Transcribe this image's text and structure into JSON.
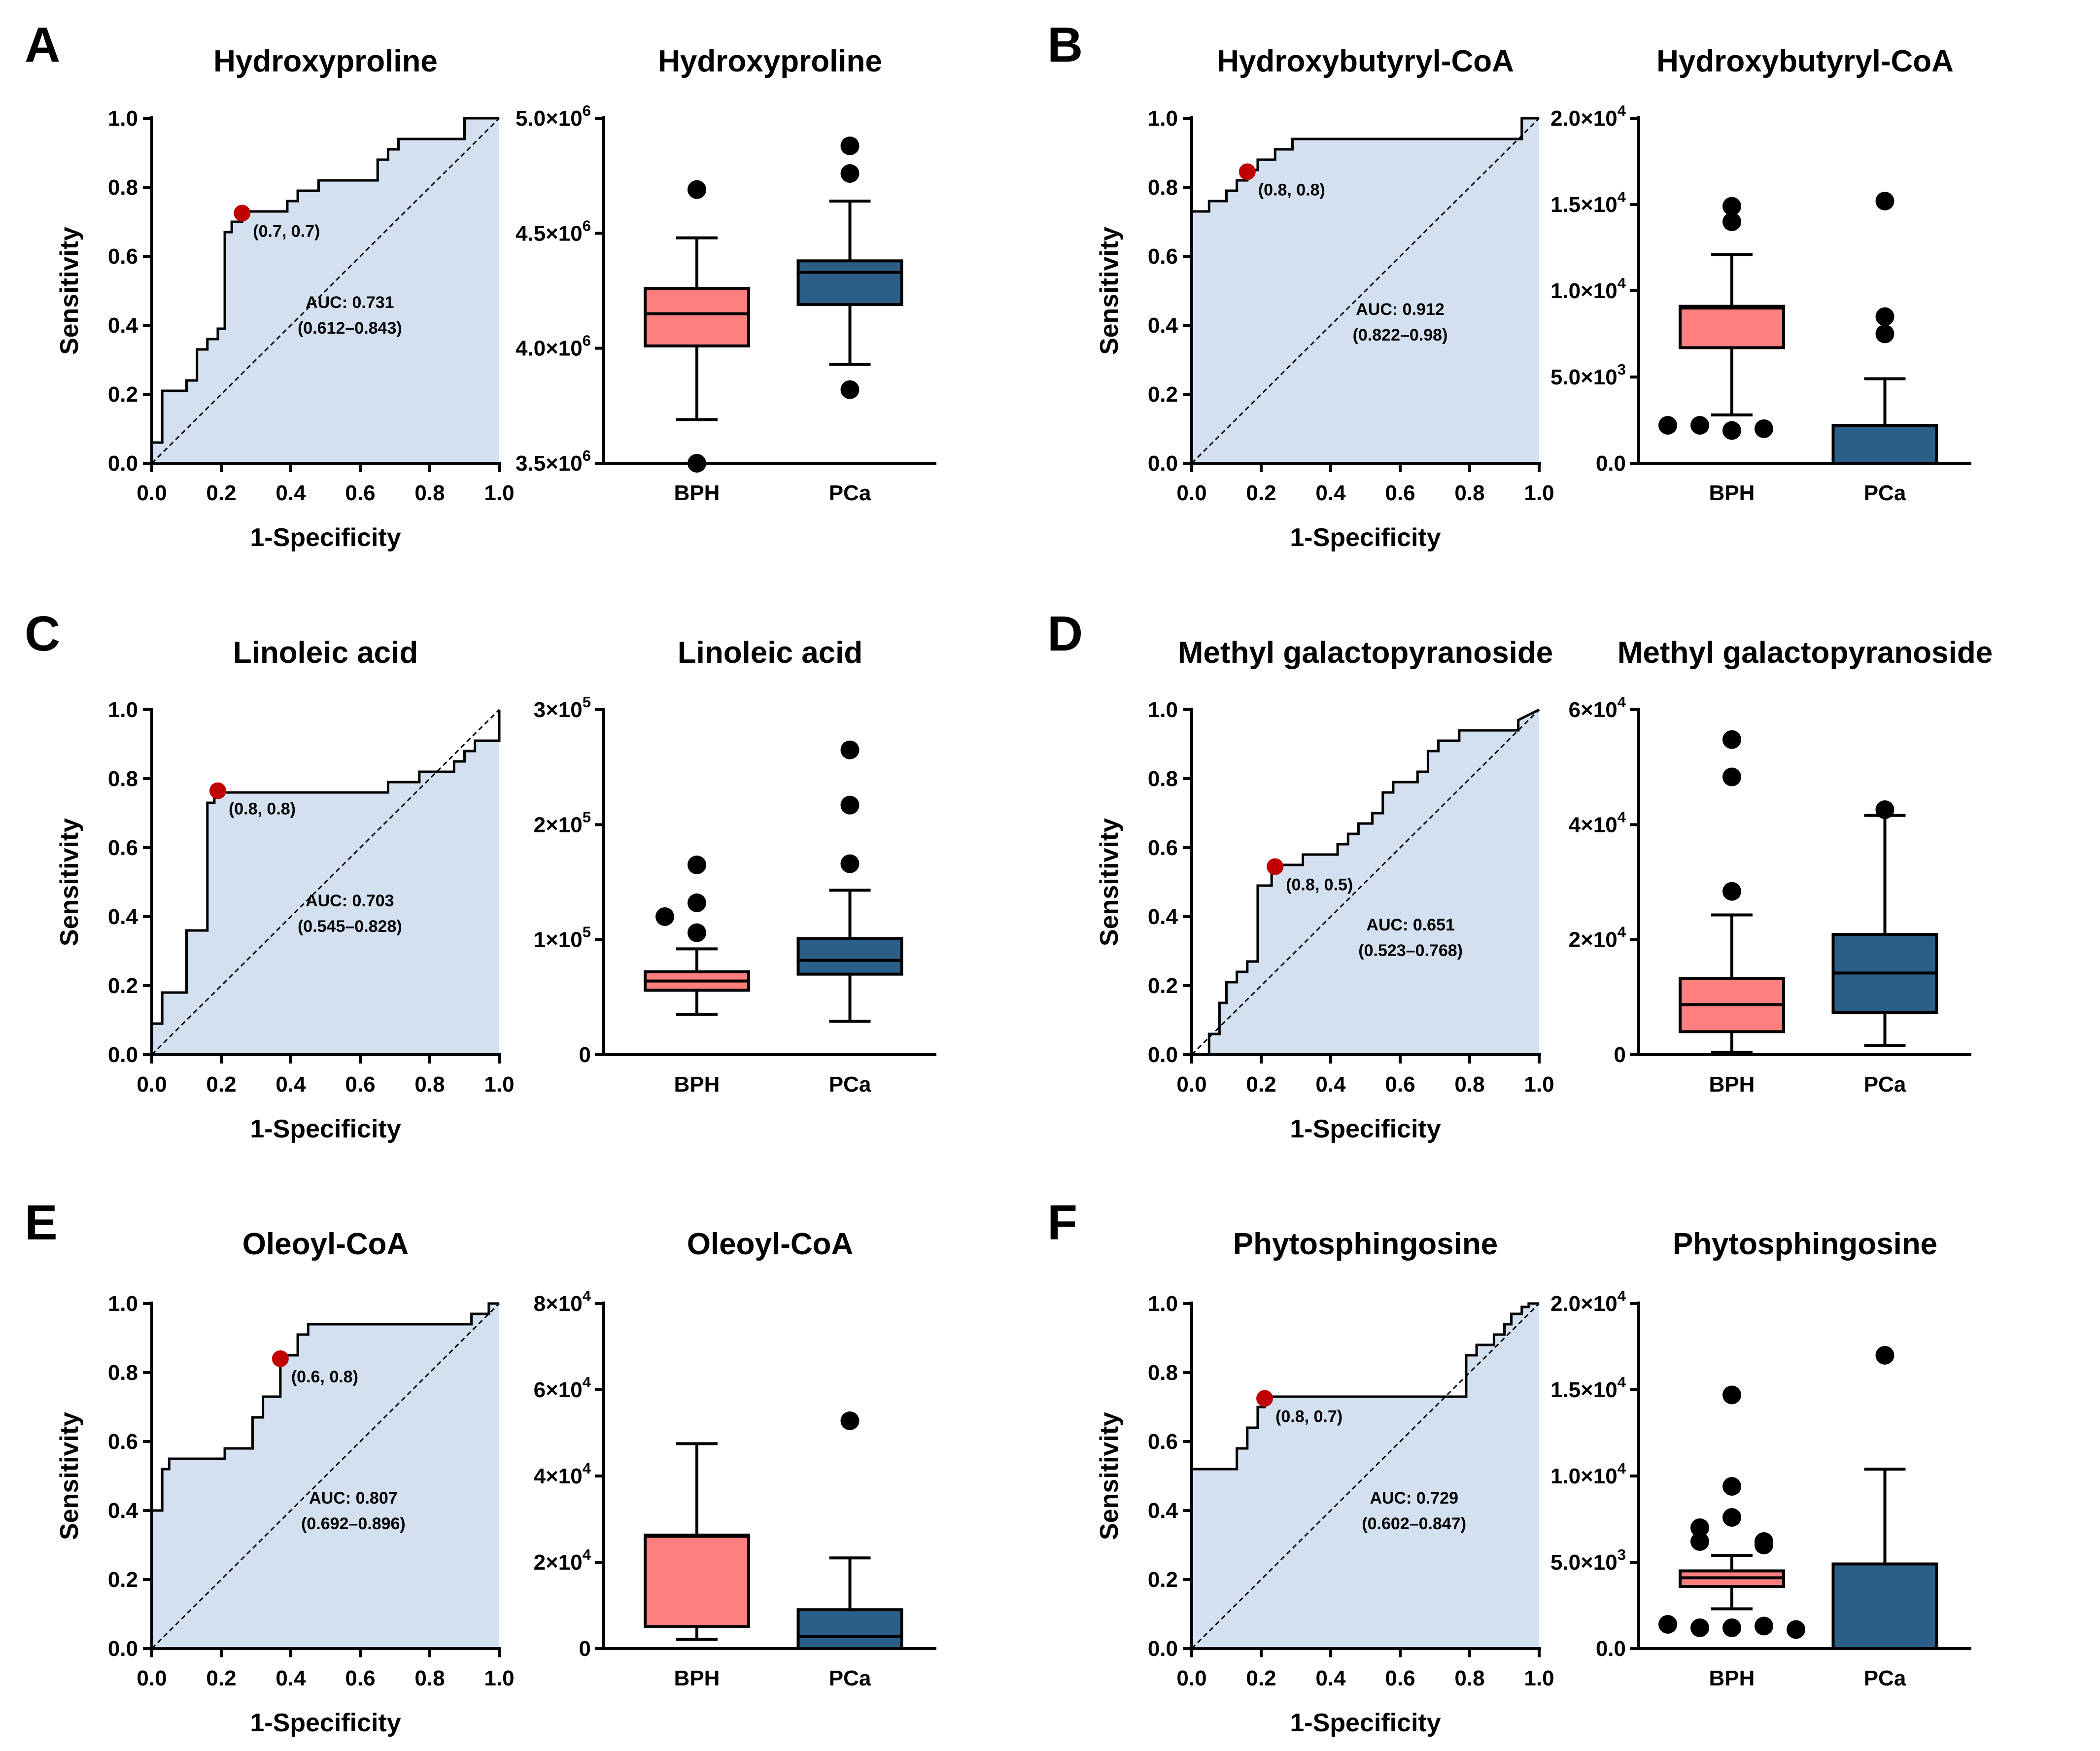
{
  "figure": {
    "colors": {
      "roc_fill": "#d3e0ef",
      "bph": "#ff7f7f",
      "pca": "#2b5f88",
      "cutoff_point": "#c00000",
      "ink": "#000000"
    }
  },
  "chart_data": [
    {
      "type": "line",
      "kind": "roc",
      "panel": "A",
      "title": "Hydroxyproline",
      "xlabel": "1-Specificity",
      "ylabel": "Sensitivity",
      "xlim": [
        0,
        1
      ],
      "ylim": [
        0,
        1
      ],
      "xticks": [
        "0.0",
        "0.2",
        "0.4",
        "0.6",
        "0.8",
        "1.0"
      ],
      "yticks": [
        "0.0",
        "0.2",
        "0.4",
        "0.6",
        "0.8",
        "1.0"
      ],
      "x": [
        0,
        0,
        0.03,
        0.03,
        0.1,
        0.1,
        0.13,
        0.13,
        0.16,
        0.16,
        0.19,
        0.19,
        0.21,
        0.21,
        0.23,
        0.23,
        0.26,
        0.26,
        0.39,
        0.39,
        0.42,
        0.42,
        0.48,
        0.48,
        0.65,
        0.65,
        0.68,
        0.68,
        0.71,
        0.71,
        0.9,
        0.9,
        1.0
      ],
      "y": [
        0,
        0.06,
        0.06,
        0.21,
        0.21,
        0.24,
        0.24,
        0.33,
        0.33,
        0.36,
        0.36,
        0.39,
        0.39,
        0.67,
        0.67,
        0.7,
        0.7,
        0.73,
        0.73,
        0.76,
        0.76,
        0.79,
        0.79,
        0.82,
        0.82,
        0.88,
        0.88,
        0.91,
        0.91,
        0.94,
        0.94,
        1.0,
        1.0
      ],
      "cutoff": [
        0.26,
        0.725
      ],
      "cutoff_label": "(0.7, 0.7)",
      "auc_label": "AUC: 0.731",
      "ci_label": "(0.612–0.843)",
      "ann_pos": [
        0.57,
        0.45
      ]
    },
    {
      "type": "box",
      "panel": "A",
      "title": "Hydroxyproline",
      "categories": [
        "BPH",
        "PCa"
      ],
      "ylim": [
        3500000,
        5000000
      ],
      "yticks": [
        {
          "v": 3500000,
          "m": "3.5",
          "e": "6"
        },
        {
          "v": 4000000,
          "m": "4.0",
          "e": "6"
        },
        {
          "v": 4500000,
          "m": "4.5",
          "e": "6"
        },
        {
          "v": 5000000,
          "m": "5.0",
          "e": "6"
        }
      ],
      "boxes": [
        {
          "name": "BPH",
          "whisker_low": 3690000,
          "q1": 4010000,
          "median": 4150000,
          "q3": 4260000,
          "whisker_high": 4480000,
          "outliers": [
            4690000,
            3500000
          ]
        },
        {
          "name": "PCa",
          "whisker_low": 3930000,
          "q1": 4190000,
          "median": 4330000,
          "q3": 4380000,
          "whisker_high": 4640000,
          "outliers": [
            4880000,
            4760000,
            3820000
          ]
        }
      ]
    },
    {
      "type": "line",
      "kind": "roc",
      "panel": "B",
      "title": "Hydroxybutyryl-CoA",
      "xlabel": "1-Specificity",
      "ylabel": "Sensitivity",
      "xlim": [
        0,
        1
      ],
      "ylim": [
        0,
        1
      ],
      "xticks": [
        "0.0",
        "0.2",
        "0.4",
        "0.6",
        "0.8",
        "1.0"
      ],
      "yticks": [
        "0.0",
        "0.2",
        "0.4",
        "0.6",
        "0.8",
        "1.0"
      ],
      "x": [
        0,
        0,
        0.05,
        0.05,
        0.1,
        0.1,
        0.13,
        0.13,
        0.16,
        0.16,
        0.19,
        0.19,
        0.24,
        0.24,
        0.29,
        0.29,
        0.95,
        0.95,
        1.0
      ],
      "y": [
        0,
        0.73,
        0.73,
        0.76,
        0.76,
        0.79,
        0.79,
        0.82,
        0.82,
        0.85,
        0.85,
        0.88,
        0.88,
        0.91,
        0.91,
        0.94,
        0.94,
        1.0,
        1.0
      ],
      "cutoff": [
        0.16,
        0.845
      ],
      "cutoff_label": "(0.8, 0.8)",
      "auc_label": "AUC: 0.912",
      "ci_label": "(0.822–0.98)",
      "ann_pos": [
        0.6,
        0.43
      ]
    },
    {
      "type": "box",
      "panel": "B",
      "title": "Hydroxybutyryl-CoA",
      "categories": [
        "BPH",
        "PCa"
      ],
      "ylim": [
        0,
        20000
      ],
      "yticks": [
        {
          "v": 0,
          "t": "0.0"
        },
        {
          "v": 5000,
          "m": "5.0",
          "e": "3"
        },
        {
          "v": 10000,
          "m": "1.0",
          "e": "4"
        },
        {
          "v": 15000,
          "m": "1.5",
          "e": "4"
        },
        {
          "v": 20000,
          "m": "2.0",
          "e": "4"
        }
      ],
      "boxes": [
        {
          "name": "BPH",
          "whisker_low": 2800,
          "q1": 6700,
          "median": 9000,
          "q3": 9100,
          "whisker_high": 12100,
          "outliers": [
            14900,
            14000,
            1900,
            2200,
            2000,
            2200
          ]
        },
        {
          "name": "PCa",
          "whisker_low": 0,
          "q1": 0,
          "median": 0,
          "q3": 2200,
          "whisker_high": 4900,
          "outliers": [
            15200,
            8500,
            7500
          ]
        }
      ]
    },
    {
      "type": "line",
      "kind": "roc",
      "panel": "C",
      "title": "Linoleic acid",
      "xlabel": "1-Specificity",
      "ylabel": "Sensitivity",
      "xlim": [
        0,
        1
      ],
      "ylim": [
        0,
        1
      ],
      "xticks": [
        "0.0",
        "0.2",
        "0.4",
        "0.6",
        "0.8",
        "1.0"
      ],
      "yticks": [
        "0.0",
        "0.2",
        "0.4",
        "0.6",
        "0.8",
        "1.0"
      ],
      "x": [
        0,
        0,
        0.03,
        0.03,
        0.1,
        0.1,
        0.16,
        0.16,
        0.18,
        0.18,
        0.68,
        0.68,
        0.77,
        0.77,
        0.87,
        0.87,
        0.9,
        0.9,
        0.93,
        0.93,
        1.0,
        1.0
      ],
      "y": [
        0,
        0.09,
        0.09,
        0.18,
        0.18,
        0.36,
        0.36,
        0.73,
        0.73,
        0.76,
        0.76,
        0.79,
        0.79,
        0.82,
        0.82,
        0.85,
        0.85,
        0.88,
        0.88,
        0.91,
        0.91,
        1.0
      ],
      "cutoff": [
        0.19,
        0.765
      ],
      "cutoff_label": "(0.8, 0.8)",
      "auc_label": "AUC: 0.703",
      "ci_label": "(0.545–0.828)",
      "ann_pos": [
        0.57,
        0.43
      ]
    },
    {
      "type": "box",
      "panel": "C",
      "title": "Linoleic acid",
      "categories": [
        "BPH",
        "PCa"
      ],
      "ylim": [
        0,
        300000
      ],
      "yticks": [
        {
          "v": 0,
          "t": "0"
        },
        {
          "v": 100000,
          "m": "1",
          "e": "5"
        },
        {
          "v": 200000,
          "m": "2",
          "e": "5"
        },
        {
          "v": 300000,
          "m": "3",
          "e": "5"
        }
      ],
      "boxes": [
        {
          "name": "BPH",
          "whisker_low": 35000,
          "q1": 56000,
          "median": 64000,
          "q3": 72000,
          "whisker_high": 92000,
          "outliers": [
            165000,
            132000,
            120000,
            106000
          ]
        },
        {
          "name": "PCa",
          "whisker_low": 29000,
          "q1": 70000,
          "median": 82000,
          "q3": 101000,
          "whisker_high": 143000,
          "outliers": [
            265000,
            217000,
            166000
          ]
        }
      ]
    },
    {
      "type": "line",
      "kind": "roc",
      "panel": "D",
      "title": "Methyl galactopyranoside",
      "xlabel": "1-Specificity",
      "ylabel": "Sensitivity",
      "xlim": [
        0,
        1
      ],
      "ylim": [
        0,
        1
      ],
      "xticks": [
        "0.0",
        "0.2",
        "0.4",
        "0.6",
        "0.8",
        "1.0"
      ],
      "yticks": [
        "0.0",
        "0.2",
        "0.4",
        "0.6",
        "0.8",
        "1.0"
      ],
      "x": [
        0,
        0.05,
        0.05,
        0.08,
        0.08,
        0.1,
        0.1,
        0.13,
        0.13,
        0.16,
        0.16,
        0.19,
        0.19,
        0.23,
        0.23,
        0.32,
        0.32,
        0.42,
        0.42,
        0.45,
        0.45,
        0.48,
        0.48,
        0.52,
        0.52,
        0.55,
        0.55,
        0.58,
        0.58,
        0.65,
        0.65,
        0.68,
        0.68,
        0.71,
        0.71,
        0.77,
        0.77,
        0.94,
        0.94,
        1.0
      ],
      "y": [
        0,
        0,
        0.06,
        0.06,
        0.15,
        0.15,
        0.21,
        0.21,
        0.24,
        0.24,
        0.27,
        0.27,
        0.49,
        0.49,
        0.55,
        0.55,
        0.58,
        0.58,
        0.61,
        0.61,
        0.64,
        0.64,
        0.67,
        0.67,
        0.7,
        0.7,
        0.76,
        0.76,
        0.79,
        0.79,
        0.82,
        0.82,
        0.88,
        0.88,
        0.91,
        0.91,
        0.94,
        0.94,
        0.97,
        1.0
      ],
      "cutoff": [
        0.24,
        0.545
      ],
      "cutoff_label": "(0.8, 0.5)",
      "auc_label": "AUC: 0.651",
      "ci_label": "(0.523–0.768)",
      "ann_pos": [
        0.63,
        0.36
      ]
    },
    {
      "type": "box",
      "panel": "D",
      "title": "Methyl galactopyranoside",
      "categories": [
        "BPH",
        "PCa"
      ],
      "ylim": [
        0,
        60000
      ],
      "yticks": [
        {
          "v": 0,
          "t": "0"
        },
        {
          "v": 20000,
          "m": "2",
          "e": "4"
        },
        {
          "v": 40000,
          "m": "4",
          "e": "4"
        },
        {
          "v": 60000,
          "m": "6",
          "e": "4"
        }
      ],
      "boxes": [
        {
          "name": "BPH",
          "whisker_low": 400,
          "q1": 4000,
          "median": 8700,
          "q3": 13200,
          "whisker_high": 24300,
          "outliers": [
            54800,
            48300,
            28400
          ]
        },
        {
          "name": "PCa",
          "whisker_low": 1600,
          "q1": 7300,
          "median": 14200,
          "q3": 20900,
          "whisker_high": 41600,
          "outliers": [
            42600
          ]
        }
      ]
    },
    {
      "type": "line",
      "kind": "roc",
      "panel": "E",
      "title": "Oleoyl-CoA",
      "xlabel": "1-Specificity",
      "ylabel": "Sensitivity",
      "xlim": [
        0,
        1
      ],
      "ylim": [
        0,
        1
      ],
      "xticks": [
        "0.0",
        "0.2",
        "0.4",
        "0.6",
        "0.8",
        "1.0"
      ],
      "yticks": [
        "0.0",
        "0.2",
        "0.4",
        "0.6",
        "0.8",
        "1.0"
      ],
      "x": [
        0,
        0,
        0.03,
        0.03,
        0.05,
        0.05,
        0.21,
        0.21,
        0.29,
        0.29,
        0.32,
        0.32,
        0.37,
        0.37,
        0.42,
        0.42,
        0.45,
        0.45,
        0.92,
        0.92,
        0.97,
        0.97,
        1.0
      ],
      "y": [
        0,
        0.4,
        0.4,
        0.52,
        0.52,
        0.55,
        0.55,
        0.58,
        0.58,
        0.67,
        0.67,
        0.73,
        0.73,
        0.85,
        0.85,
        0.91,
        0.91,
        0.94,
        0.94,
        0.97,
        0.97,
        1.0,
        1.0
      ],
      "cutoff": [
        0.37,
        0.84
      ],
      "cutoff_label": "(0.6, 0.8)",
      "auc_label": "AUC: 0.807",
      "ci_label": "(0.692–0.896)",
      "ann_pos": [
        0.58,
        0.42
      ]
    },
    {
      "type": "box",
      "panel": "E",
      "title": "Oleoyl-CoA",
      "categories": [
        "BPH",
        "PCa"
      ],
      "ylim": [
        0,
        80000
      ],
      "yticks": [
        {
          "v": 0,
          "t": "0"
        },
        {
          "v": 20000,
          "m": "2",
          "e": "4"
        },
        {
          "v": 40000,
          "m": "4",
          "e": "4"
        },
        {
          "v": 60000,
          "m": "6",
          "e": "4"
        },
        {
          "v": 80000,
          "m": "8",
          "e": "4"
        }
      ],
      "boxes": [
        {
          "name": "BPH",
          "whisker_low": 2100,
          "q1": 5100,
          "median": 26000,
          "q3": 26300,
          "whisker_high": 47500,
          "outliers": []
        },
        {
          "name": "PCa",
          "whisker_low": 0,
          "q1": 0,
          "median": 2800,
          "q3": 9000,
          "whisker_high": 21000,
          "outliers": [
            52800
          ]
        }
      ]
    },
    {
      "type": "line",
      "kind": "roc",
      "panel": "F",
      "title": "Phytosphingosine",
      "xlabel": "1-Specificity",
      "ylabel": "Sensitivity",
      "xlim": [
        0,
        1
      ],
      "ylim": [
        0,
        1
      ],
      "xticks": [
        "0.0",
        "0.2",
        "0.4",
        "0.6",
        "0.8",
        "1.0"
      ],
      "yticks": [
        "0.0",
        "0.2",
        "0.4",
        "0.6",
        "0.8",
        "1.0"
      ],
      "x": [
        0,
        0,
        0.13,
        0.13,
        0.16,
        0.16,
        0.19,
        0.19,
        0.21,
        0.21,
        0.79,
        0.79,
        0.82,
        0.82,
        0.87,
        0.87,
        0.9,
        0.9,
        0.92,
        0.92,
        0.95,
        0.95,
        0.97,
        0.97,
        1.0
      ],
      "y": [
        0,
        0.52,
        0.52,
        0.58,
        0.58,
        0.64,
        0.64,
        0.7,
        0.7,
        0.73,
        0.73,
        0.85,
        0.85,
        0.88,
        0.88,
        0.91,
        0.91,
        0.94,
        0.94,
        0.97,
        0.97,
        0.99,
        0.99,
        1.0,
        1.0
      ],
      "cutoff": [
        0.21,
        0.725
      ],
      "cutoff_label": "(0.8, 0.7)",
      "auc_label": "AUC: 0.729",
      "ci_label": "(0.602–0.847)",
      "ann_pos": [
        0.64,
        0.42
      ]
    },
    {
      "type": "box",
      "panel": "F",
      "title": "Phytosphingosine",
      "categories": [
        "BPH",
        "PCa"
      ],
      "ylim": [
        0,
        20000
      ],
      "yticks": [
        {
          "v": 0,
          "t": "0.0"
        },
        {
          "v": 5000,
          "m": "5.0",
          "e": "3"
        },
        {
          "v": 10000,
          "m": "1.0",
          "e": "4"
        },
        {
          "v": 15000,
          "m": "1.5",
          "e": "4"
        },
        {
          "v": 20000,
          "m": "2.0",
          "e": "4"
        }
      ],
      "boxes": [
        {
          "name": "BPH",
          "whisker_low": 2300,
          "q1": 3600,
          "median": 4100,
          "q3": 4500,
          "whisker_high": 5400,
          "outliers": [
            14700,
            9400,
            7600,
            7000,
            6200,
            6200,
            6000,
            1200,
            1200,
            1300,
            1400,
            1100
          ]
        },
        {
          "name": "PCa",
          "whisker_low": 0,
          "q1": 0,
          "median": 0,
          "q3": 4900,
          "whisker_high": 10400,
          "outliers": [
            17000
          ]
        }
      ]
    }
  ]
}
